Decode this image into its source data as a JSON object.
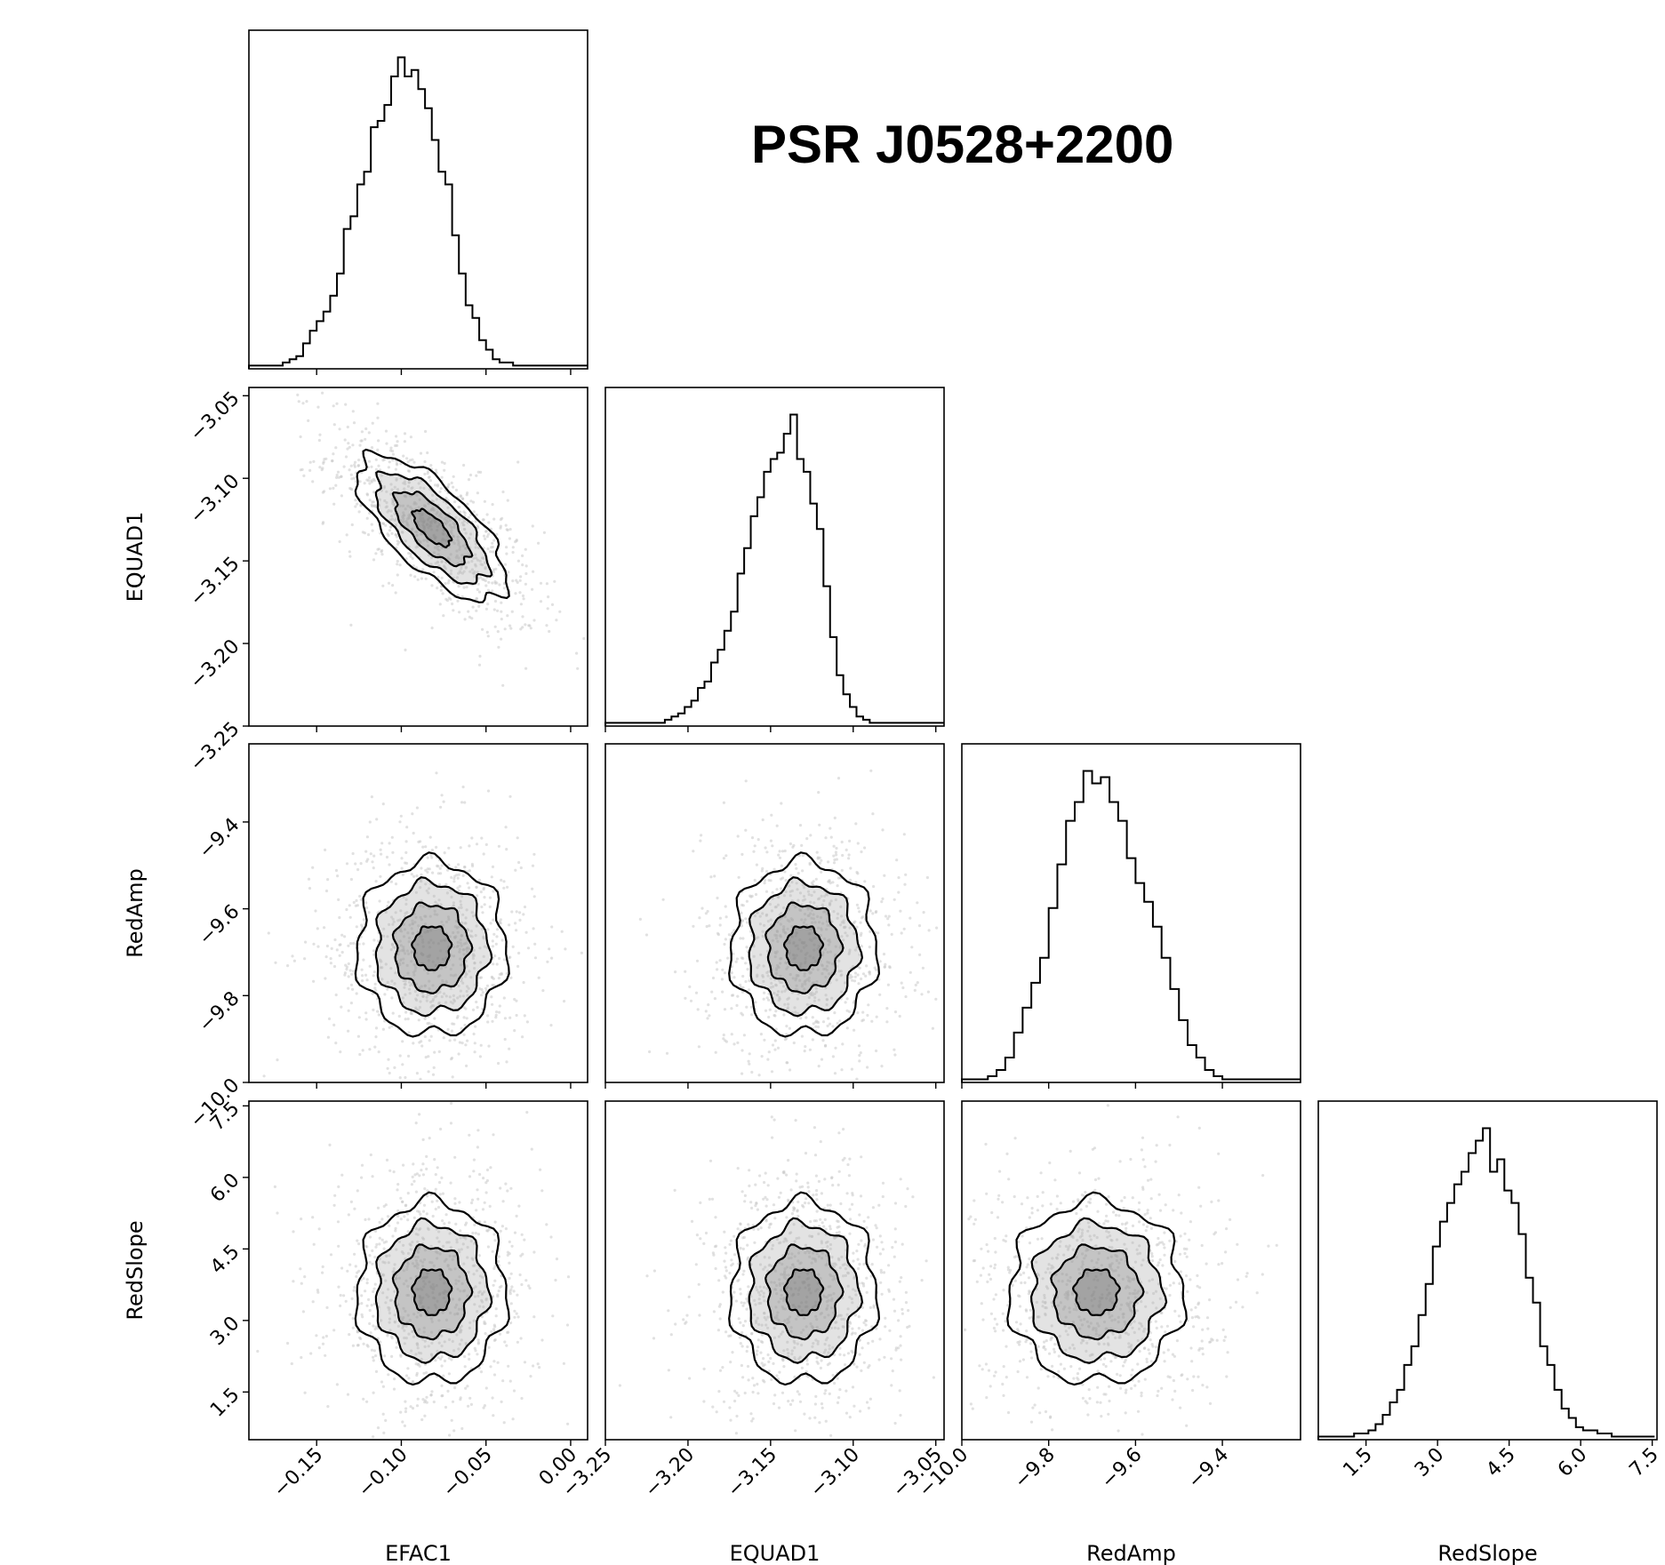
{
  "page_title": "PSR J0528+2200",
  "chart_data": {
    "type": "corner",
    "title": "PSR J0528+2200",
    "parameters": [
      {
        "name": "EFAC1",
        "range": [
          -0.19,
          0.01
        ],
        "ticks": [
          -0.15,
          -0.1,
          -0.05,
          0.0
        ],
        "tick_labels": [
          "-0.15",
          "-0.10",
          "-0.05",
          "0.00"
        ],
        "mean": -0.082,
        "sd": 0.022
      },
      {
        "name": "EQUAD1",
        "range": [
          -3.25,
          -3.045
        ],
        "ticks": [
          -3.25,
          -3.2,
          -3.15,
          -3.1,
          -3.05
        ],
        "tick_labels": [
          "-3.25",
          "-3.20",
          "-3.15",
          "-3.10",
          "-3.05"
        ],
        "mean": -3.13,
        "sd": 0.022
      },
      {
        "name": "RedAmp",
        "range": [
          -10.0,
          -9.22
        ],
        "ticks": [
          -10.0,
          -9.8,
          -9.6,
          -9.4
        ],
        "tick_labels": [
          "-10.0",
          "-9.8",
          "-9.6",
          "-9.4"
        ],
        "mean": -9.69,
        "sd": 0.1
      },
      {
        "name": "RedSlope",
        "range": [
          0.5,
          7.6
        ],
        "ticks": [
          1.5,
          3.0,
          4.5,
          6.0,
          7.5
        ],
        "tick_labels": [
          "1.5",
          "3.0",
          "4.5",
          "6.0",
          "7.5"
        ],
        "mean": 3.6,
        "sd": 0.95
      }
    ],
    "correlations": {
      "EFAC1-EQUAD1": -0.7
    },
    "histograms": [
      {
        "name": "EFAC1",
        "x0": -0.19,
        "width": 0.004,
        "counts": [
          1,
          1,
          1,
          1,
          1,
          2,
          3,
          4,
          8,
          12,
          15,
          18,
          23,
          30,
          44,
          48,
          58,
          62,
          76,
          78,
          83,
          92,
          98,
          92,
          94,
          88,
          82,
          72,
          62,
          58,
          42,
          30,
          20,
          16,
          9,
          6,
          3,
          2,
          2,
          1,
          1,
          1,
          1,
          1,
          1,
          1,
          1,
          1,
          1,
          1
        ]
      },
      {
        "name": "EQUAD1",
        "x0": -3.25,
        "width": 0.004,
        "counts": [
          1,
          1,
          1,
          1,
          1,
          1,
          1,
          1,
          1,
          2,
          3,
          4,
          6,
          8,
          12,
          14,
          20,
          24,
          30,
          36,
          48,
          56,
          66,
          72,
          80,
          84,
          86,
          92,
          98,
          84,
          80,
          70,
          62,
          44,
          28,
          16,
          10,
          6,
          3,
          2,
          1,
          1,
          1,
          1,
          1,
          1,
          1,
          1,
          1,
          1,
          1,
          1
        ]
      },
      {
        "name": "RedAmp",
        "x0": -10.0,
        "width": 0.02,
        "counts": [
          1,
          1,
          1,
          2,
          4,
          8,
          16,
          24,
          32,
          40,
          56,
          70,
          84,
          90,
          100,
          96,
          98,
          90,
          84,
          72,
          64,
          58,
          50,
          40,
          30,
          20,
          12,
          8,
          4,
          2,
          1,
          1,
          1,
          1,
          1,
          1,
          1,
          1,
          1
        ]
      },
      {
        "name": "RedSlope",
        "x0": 0.5,
        "width": 0.15,
        "counts": [
          1,
          1,
          1,
          1,
          1,
          2,
          2,
          3,
          5,
          8,
          12,
          16,
          24,
          30,
          40,
          50,
          62,
          70,
          76,
          82,
          86,
          92,
          96,
          100,
          86,
          90,
          80,
          76,
          66,
          52,
          44,
          30,
          24,
          16,
          10,
          7,
          4,
          3,
          3,
          2,
          2,
          1,
          1,
          1,
          1,
          1,
          1
        ]
      }
    ]
  }
}
